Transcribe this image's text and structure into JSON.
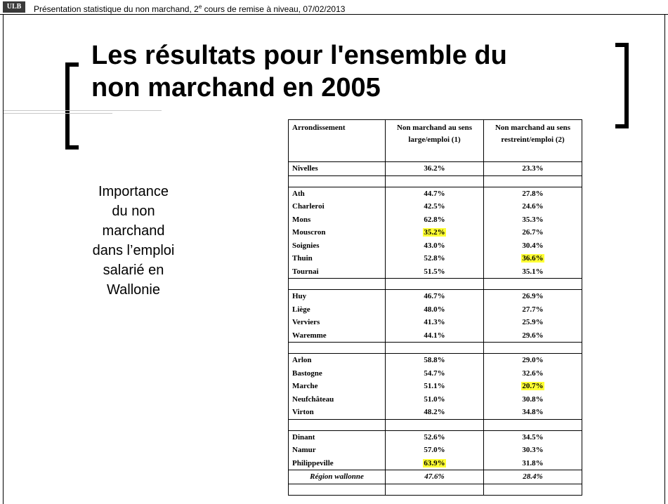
{
  "header": {
    "logo": "ULB",
    "text": "Présentation statistique du non marchand, 2",
    "sup": "e",
    "text_end": " cours de remise à niveau, 07/02/2013"
  },
  "title": {
    "line1": "Les résultats pour l'ensemble du",
    "line2": "non marchand en 2005"
  },
  "side_text": [
    "Importance",
    "du non",
    "marchand",
    "dans l’emploi",
    "salarié en",
    "Wallonie"
  ],
  "table": {
    "header": [
      "Arrondissement",
      "Non marchand au sens large/emploi (1)",
      "Non marchand au sens restreint/emploi (2)"
    ],
    "highlight_color": "#ffff33",
    "groups": [
      {
        "rows": [
          {
            "name": "Nivelles",
            "values": [
              "36.2%",
              "23.3%"
            ]
          }
        ]
      },
      {
        "rows": [
          {
            "name": "Ath",
            "values": [
              "44.7%",
              "27.8%"
            ]
          },
          {
            "name": "Charleroi",
            "values": [
              "42.5%",
              "24.6%"
            ]
          },
          {
            "name": "Mons",
            "values": [
              "62.8%",
              "35.3%"
            ]
          },
          {
            "name": "Mouscron",
            "values": [
              "35.2%",
              "26.7%"
            ],
            "highlight": 0
          },
          {
            "name": "Soignies",
            "values": [
              "43.0%",
              "30.4%"
            ]
          },
          {
            "name": "Thuin",
            "values": [
              "52.8%",
              "36.6%"
            ],
            "highlight": 1
          },
          {
            "name": "Tournai",
            "values": [
              "51.5%",
              "35.1%"
            ]
          }
        ]
      },
      {
        "rows": [
          {
            "name": "Huy",
            "values": [
              "46.7%",
              "26.9%"
            ]
          },
          {
            "name": "Liège",
            "values": [
              "48.0%",
              "27.7%"
            ]
          },
          {
            "name": "Verviers",
            "values": [
              "41.3%",
              "25.9%"
            ]
          },
          {
            "name": "Waremme",
            "values": [
              "44.1%",
              "29.6%"
            ]
          }
        ]
      },
      {
        "rows": [
          {
            "name": "Arlon",
            "values": [
              "58.8%",
              "29.0%"
            ]
          },
          {
            "name": "Bastogne",
            "values": [
              "54.7%",
              "32.6%"
            ]
          },
          {
            "name": "Marche",
            "values": [
              "51.1%",
              "20.7%"
            ],
            "highlight": 1
          },
          {
            "name": "Neufchâteau",
            "values": [
              "51.0%",
              "30.8%"
            ]
          },
          {
            "name": "Virton",
            "values": [
              "48.2%",
              "34.8%"
            ]
          }
        ]
      },
      {
        "rows": [
          {
            "name": "Dinant",
            "values": [
              "52.6%",
              "34.5%"
            ]
          },
          {
            "name": "Namur",
            "values": [
              "57.0%",
              "30.3%"
            ]
          },
          {
            "name": "Philippeville",
            "values": [
              "63.9%",
              "31.8%"
            ],
            "highlight": 0
          }
        ]
      }
    ],
    "total": {
      "name": "Région wallonne",
      "values": [
        "47.6%",
        "28.4%"
      ]
    }
  }
}
